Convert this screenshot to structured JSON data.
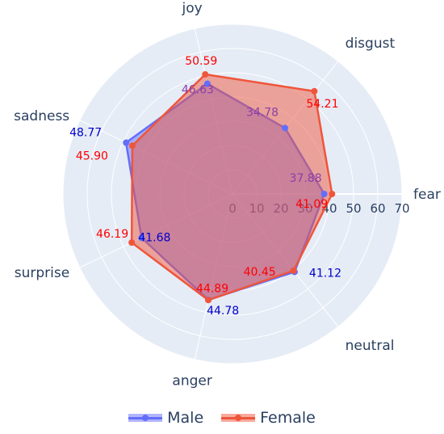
{
  "chart_data": {
    "type": "radar",
    "title": "",
    "categories": [
      "fear",
      "disgust",
      "joy",
      "sadness",
      "surprise",
      "anger",
      "neutral"
    ],
    "radial_range": [
      0,
      70
    ],
    "radial_ticks": [
      "0",
      "10",
      "20",
      "30",
      "40",
      "50",
      "60",
      "70"
    ],
    "series": [
      {
        "name": "Male",
        "values": [
          37.88,
          34.78,
          46.63,
          48.77,
          41.68,
          44.78,
          41.12
        ],
        "labels": [
          "37.88",
          "34.78",
          "46.63",
          "48.77",
          "41.68",
          "44.78",
          "41.12"
        ],
        "color": "#636efa",
        "label_colors": [
          "#8b3fa8",
          "#8b3fa8",
          "#8b3fa8",
          "#0000cc",
          "#0000cc",
          "#0000cc",
          "#0000cc"
        ]
      },
      {
        "name": "Female",
        "values": [
          41.09,
          54.21,
          50.59,
          45.9,
          46.19,
          44.89,
          40.45
        ],
        "labels": [
          "41.09",
          "54.21",
          "50.59",
          "45.90",
          "46.19",
          "44.89",
          "40.45"
        ],
        "color": "#ef553b",
        "label_colors": [
          "#ff0000",
          "#ff0000",
          "#ff0000",
          "#ff0000",
          "#ff0000",
          "#ff0000",
          "#ff0000"
        ]
      }
    ],
    "legend": {
      "position": "bottom-center"
    },
    "grid": true
  }
}
